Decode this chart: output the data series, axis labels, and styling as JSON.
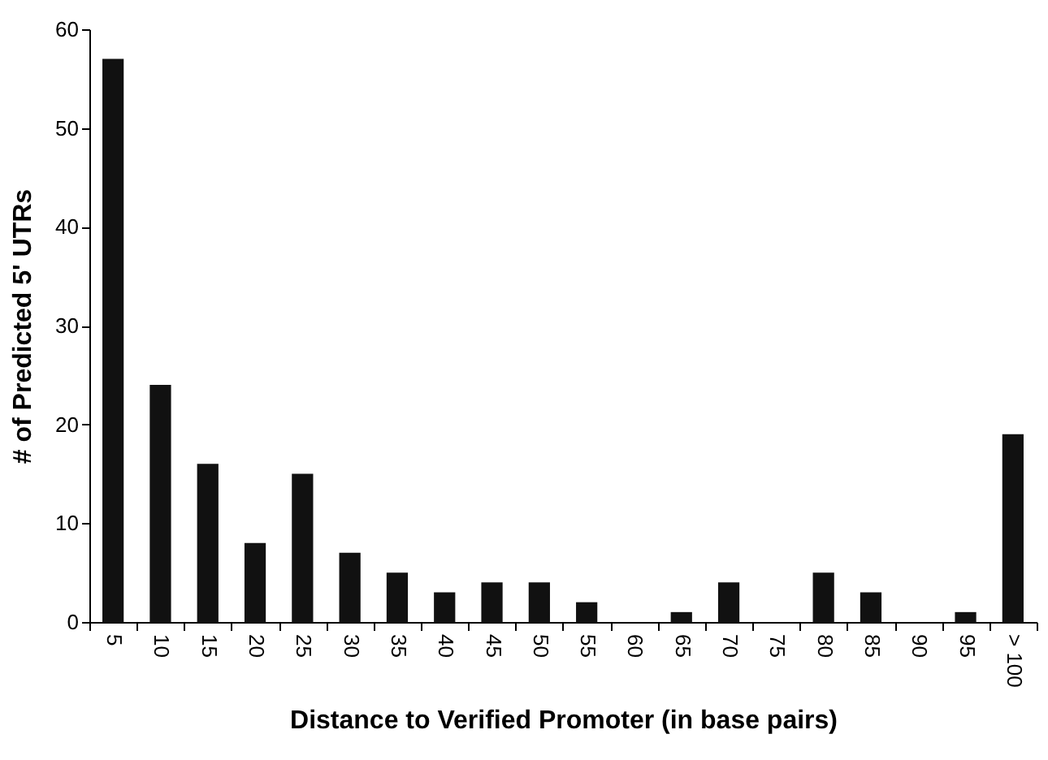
{
  "chart_data": {
    "type": "bar",
    "xlabel": "Distance to Verified Promoter (in base pairs)",
    "ylabel": "# of Predicted 5' UTRs",
    "categories": [
      "5",
      "10",
      "15",
      "20",
      "25",
      "30",
      "35",
      "40",
      "45",
      "50",
      "55",
      "60",
      "65",
      "70",
      "75",
      "80",
      "85",
      "90",
      "95",
      "> 100"
    ],
    "values": [
      57,
      24,
      16,
      8,
      15,
      7,
      5,
      3,
      4,
      4,
      2,
      0,
      1,
      4,
      0,
      5,
      3,
      0,
      1,
      19
    ],
    "color": "#111111",
    "ylim": [
      0,
      60
    ],
    "yticks": [
      0,
      10,
      20,
      30,
      40,
      50,
      60
    ],
    "grid": false
  }
}
